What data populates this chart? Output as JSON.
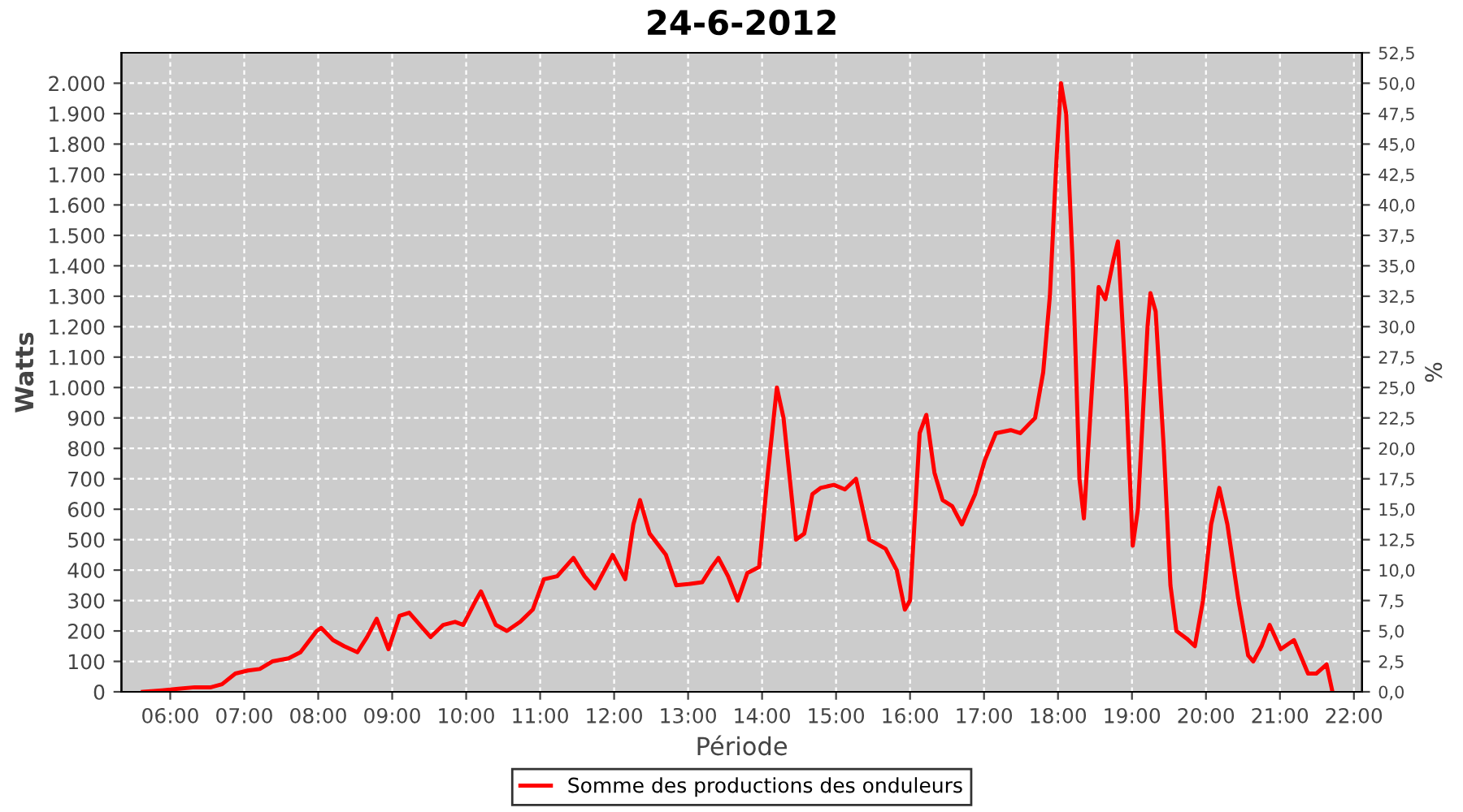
{
  "chart_data": {
    "type": "line",
    "title": "24-6-2012",
    "xlabel": "Période",
    "ylabel": "Watts",
    "y2label": "%",
    "xlim": [
      5.34,
      22.11
    ],
    "xticks": [
      {
        "value": 6,
        "label": "06:00"
      },
      {
        "value": 7,
        "label": "07:00"
      },
      {
        "value": 8,
        "label": "08:00"
      },
      {
        "value": 9,
        "label": "09:00"
      },
      {
        "value": 10,
        "label": "10:00"
      },
      {
        "value": 11,
        "label": "11:00"
      },
      {
        "value": 12,
        "label": "12:00"
      },
      {
        "value": 13,
        "label": "13:00"
      },
      {
        "value": 14,
        "label": "14:00"
      },
      {
        "value": 15,
        "label": "15:00"
      },
      {
        "value": 16,
        "label": "16:00"
      },
      {
        "value": 17,
        "label": "17:00"
      },
      {
        "value": 18,
        "label": "18:00"
      },
      {
        "value": 19,
        "label": "19:00"
      },
      {
        "value": 20,
        "label": "20:00"
      },
      {
        "value": 21,
        "label": "21:00"
      },
      {
        "value": 22,
        "label": "22:00"
      }
    ],
    "ylim": [
      0,
      2100
    ],
    "yticks": [
      0,
      100,
      200,
      300,
      400,
      500,
      600,
      700,
      800,
      900,
      {
        "value": 1000,
        "label": "1.000"
      },
      {
        "value": 1100,
        "label": "1.100"
      },
      {
        "value": 1200,
        "label": "1.200"
      },
      {
        "value": 1300,
        "label": "1.300"
      },
      {
        "value": 1400,
        "label": "1.400"
      },
      {
        "value": 1500,
        "label": "1.500"
      },
      {
        "value": 1600,
        "label": "1.600"
      },
      {
        "value": 1700,
        "label": "1.700"
      },
      {
        "value": 1800,
        "label": "1.800"
      },
      {
        "value": 1900,
        "label": "1.900"
      },
      {
        "value": 2000,
        "label": "2.000"
      }
    ],
    "y2lim": [
      0,
      52.5
    ],
    "y2ticks": [
      {
        "value": 0,
        "label": "0,0"
      },
      {
        "value": 2.5,
        "label": "2,5"
      },
      {
        "value": 5,
        "label": "5,0"
      },
      {
        "value": 7.5,
        "label": "7,5"
      },
      {
        "value": 10,
        "label": "10,0"
      },
      {
        "value": 12.5,
        "label": "12,5"
      },
      {
        "value": 15,
        "label": "15,0"
      },
      {
        "value": 17.5,
        "label": "17,5"
      },
      {
        "value": 20,
        "label": "20,0"
      },
      {
        "value": 22.5,
        "label": "22,5"
      },
      {
        "value": 25,
        "label": "25,0"
      },
      {
        "value": 27.5,
        "label": "27,5"
      },
      {
        "value": 30,
        "label": "30,0"
      },
      {
        "value": 32.5,
        "label": "32,5"
      },
      {
        "value": 35,
        "label": "35,0"
      },
      {
        "value": 37.5,
        "label": "37,5"
      },
      {
        "value": 40,
        "label": "40,0"
      },
      {
        "value": 42.5,
        "label": "42,5"
      },
      {
        "value": 45,
        "label": "45,0"
      },
      {
        "value": 47.5,
        "label": "47,5"
      },
      {
        "value": 50,
        "label": "50,0"
      },
      {
        "value": 52.5,
        "label": "52,5"
      }
    ],
    "grid": true,
    "legend": "bottom",
    "marker": "none",
    "line_style": "solid",
    "x": [
      5.63,
      5.89,
      6.11,
      6.33,
      6.55,
      6.7,
      6.88,
      7.05,
      7.21,
      7.38,
      7.6,
      7.76,
      7.98,
      8.04,
      8.2,
      8.35,
      8.53,
      8.66,
      8.79,
      8.95,
      9.1,
      9.23,
      9.41,
      9.52,
      9.69,
      9.85,
      9.96,
      10.13,
      10.2,
      10.4,
      10.55,
      10.73,
      10.9,
      11.05,
      11.23,
      11.45,
      11.6,
      11.74,
      11.87,
      11.98,
      12.15,
      12.26,
      12.35,
      12.48,
      12.7,
      12.84,
      13.03,
      13.19,
      13.32,
      13.41,
      13.54,
      13.67,
      13.8,
      13.96,
      14.07,
      14.2,
      14.29,
      14.46,
      14.57,
      14.68,
      14.79,
      14.97,
      15.12,
      15.27,
      15.45,
      15.67,
      15.82,
      15.93,
      16.0,
      16.13,
      16.22,
      16.33,
      16.44,
      16.57,
      16.7,
      16.88,
      17.01,
      17.16,
      17.36,
      17.49,
      17.69,
      17.8,
      17.89,
      17.98,
      18.04,
      18.11,
      18.2,
      18.29,
      18.35,
      18.46,
      18.55,
      18.64,
      18.75,
      18.81,
      18.92,
      19.01,
      19.08,
      19.21,
      19.25,
      19.32,
      19.43,
      19.52,
      19.6,
      19.74,
      19.85,
      19.96,
      20.07,
      20.18,
      20.29,
      20.44,
      20.57,
      20.64,
      20.75,
      20.86,
      21.01,
      21.19,
      21.38,
      21.49,
      21.63,
      21.71
    ],
    "series": [
      {
        "name": "Somme des productions des onduleurs",
        "color": "#ff0000",
        "values": [
          0,
          5,
          10,
          15,
          15,
          25,
          60,
          70,
          75,
          100,
          110,
          130,
          200,
          210,
          170,
          150,
          130,
          180,
          240,
          140,
          250,
          260,
          210,
          180,
          220,
          230,
          220,
          300,
          330,
          220,
          200,
          230,
          270,
          370,
          380,
          440,
          380,
          340,
          400,
          450,
          370,
          550,
          630,
          520,
          450,
          350,
          355,
          360,
          410,
          440,
          380,
          300,
          390,
          410,
          700,
          1000,
          900,
          500,
          520,
          650,
          670,
          680,
          665,
          700,
          500,
          470,
          400,
          270,
          300,
          850,
          910,
          720,
          630,
          610,
          550,
          650,
          760,
          850,
          860,
          850,
          900,
          1050,
          1300,
          1750,
          2000,
          1900,
          1400,
          700,
          570,
          1000,
          1330,
          1290,
          1420,
          1480,
          1000,
          480,
          600,
          1200,
          1310,
          1250,
          800,
          350,
          200,
          175,
          150,
          300,
          550,
          670,
          550,
          300,
          120,
          100,
          150,
          220,
          140,
          170,
          60,
          60,
          90,
          0
        ]
      }
    ]
  }
}
